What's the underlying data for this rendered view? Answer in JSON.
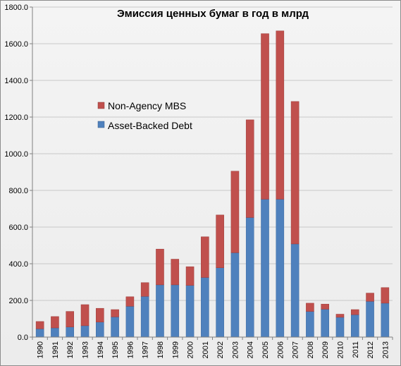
{
  "chart_data": {
    "type": "bar",
    "stacked": true,
    "title": "Эмиссия ценных бумаг в год в млрд",
    "xlabel": "",
    "ylabel": "",
    "ylim": [
      0,
      1800
    ],
    "y_tick_step": 200,
    "y_tick_decimals": 1,
    "grid": true,
    "legend_position": "left-middle",
    "categories": [
      "1990",
      "1991",
      "1992",
      "1993",
      "1994",
      "1995",
      "1996",
      "1997",
      "1998",
      "1999",
      "2000",
      "2001",
      "2002",
      "2003",
      "2004",
      "2005",
      "2006",
      "2007",
      "2008",
      "2009",
      "2010",
      "2011",
      "2012",
      "2013"
    ],
    "series": [
      {
        "name": "Asset-Backed Debt",
        "color": "#4f81bd",
        "values": [
          45,
          50,
          55,
          62,
          82,
          110,
          168,
          222,
          285,
          285,
          282,
          325,
          378,
          460,
          652,
          752,
          752,
          508,
          140,
          152,
          108,
          122,
          195,
          185
        ]
      },
      {
        "name": "Non-Agency MBS",
        "color": "#c0504d",
        "values": [
          40,
          62,
          85,
          115,
          75,
          40,
          52,
          75,
          195,
          140,
          102,
          222,
          288,
          445,
          533,
          903,
          918,
          777,
          45,
          28,
          17,
          28,
          45,
          85
        ]
      }
    ],
    "legend": [
      {
        "name": "Non-Agency MBS",
        "color": "#c0504d"
      },
      {
        "name": "Asset-Backed Debt",
        "color": "#4f81bd"
      }
    ]
  }
}
